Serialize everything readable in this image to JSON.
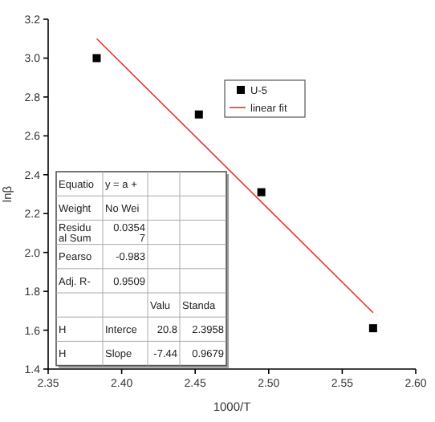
{
  "chart_data": {
    "type": "scatter",
    "xlabel": "1000/T",
    "ylabel": "lnβ",
    "xlim": [
      2.35,
      2.6
    ],
    "ylim": [
      1.4,
      3.2
    ],
    "xticks": [
      {
        "value": 2.35,
        "label": "2.35"
      },
      {
        "value": 2.4,
        "label": "2.40"
      },
      {
        "value": 2.45,
        "label": "2.45"
      },
      {
        "value": 2.5,
        "label": "2.50"
      },
      {
        "value": 2.55,
        "label": "2.55"
      },
      {
        "value": 2.6,
        "label": "2.60"
      }
    ],
    "yticks": [
      {
        "value": 1.4,
        "label": "1.4"
      },
      {
        "value": 1.6,
        "label": "1.6"
      },
      {
        "value": 1.8,
        "label": "1.8"
      },
      {
        "value": 2.0,
        "label": "2.0"
      },
      {
        "value": 2.2,
        "label": "2.2"
      },
      {
        "value": 2.4,
        "label": "2.4"
      },
      {
        "value": 2.6,
        "label": "2.6"
      },
      {
        "value": 2.8,
        "label": "2.8"
      },
      {
        "value": 3.0,
        "label": "3.0"
      },
      {
        "value": 3.2,
        "label": "3.2"
      }
    ],
    "grid": false,
    "legend": "top right",
    "series": [
      {
        "name": "U-5",
        "marker": "square",
        "color": "#000000",
        "x": [
          2.383,
          2.4525,
          2.495,
          2.571
        ],
        "values": [
          3.0,
          2.71,
          2.31,
          1.61
        ]
      },
      {
        "name": "linear fit",
        "type": "line",
        "marker": "none",
        "line_style": "solid",
        "color": "#e8302a",
        "x": [
          2.383,
          2.571
        ],
        "values": [
          3.1,
          1.69
        ]
      }
    ],
    "annotations": [
      "Equatio",
      "y = a +",
      "Weight",
      "No Wei",
      "Residu\nal Sum",
      "0.0354\n7",
      "Pearso",
      "-0.983",
      "Adj. R-",
      "0.9509",
      "Valu",
      "Standa",
      "H",
      "Interce",
      "20.8",
      "2.3958",
      "H",
      "Slope",
      "-7.44",
      "0.9679"
    ]
  }
}
